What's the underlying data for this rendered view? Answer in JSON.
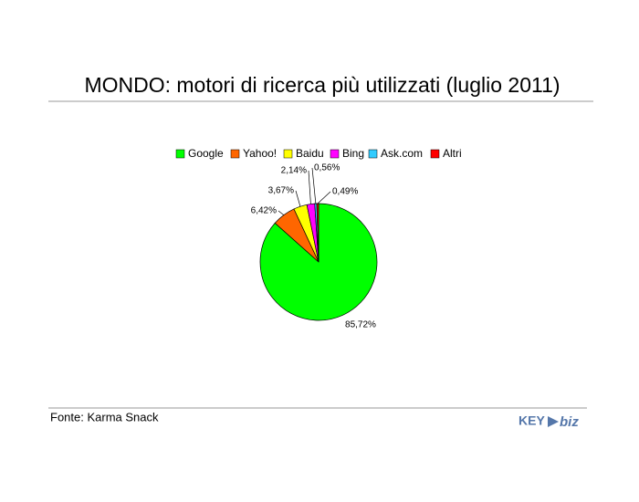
{
  "chart_data": {
    "type": "pie",
    "title": "MONDO: motori di ricerca più utilizzati (luglio 2011)",
    "categories": [
      "Google",
      "Yahoo!",
      "Baidu",
      "Bing",
      "Ask.com",
      "Altri"
    ],
    "values": [
      85.72,
      6.42,
      3.67,
      2.14,
      0.56,
      0.49
    ],
    "value_labels": [
      "85,72%",
      "6,42%",
      "3,67%",
      "2,14%",
      "0,56%",
      "0,49%"
    ],
    "colors": [
      "#00ff00",
      "#ff6600",
      "#ffff00",
      "#ff00ff",
      "#33ccff",
      "#ff0000"
    ],
    "legend": "top"
  },
  "footer": {
    "source": "Fonte: Karma Snack",
    "logo_left": "KEY",
    "logo_right": "biz"
  }
}
